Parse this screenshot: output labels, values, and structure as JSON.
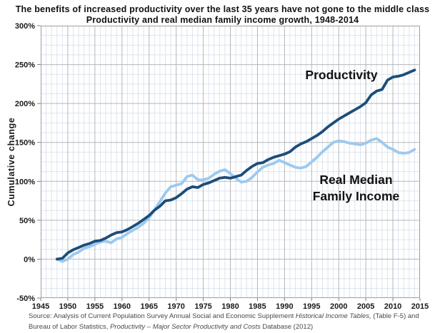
{
  "title_line1": "The benefits of increased productivity over the last 35 years have not gone to the middle class",
  "title_line2": "Productivity and real median family income growth, 1948-2014",
  "y_axis_title": "Cumulative change",
  "source": {
    "line1_pre": "Source:  Analysis of Current Population Survey Annual Social and Economic Supplement ",
    "line1_italic": "Historical Income Tables,",
    "line1_post": " (Table F-5) and",
    "line2_pre": "Bureau of Labor Statistics, ",
    "line2_italic": "Productivity – Major Sector Productivity and Costs",
    "line2_post": " Database (2012)"
  },
  "chart_data": {
    "type": "line",
    "title": "Productivity and real median family income growth, 1948-2014",
    "xlabel": "",
    "ylabel": "Cumulative change",
    "xlim": [
      1945,
      2015
    ],
    "ylim": [
      -50,
      300
    ],
    "grid": {
      "minor_x_step_years": 1,
      "minor_y_step_pct": 12.5,
      "major_x_step_years": 5,
      "major_y_step_pct": 50,
      "minor_color": "#dde4ee",
      "major_color": "#b3b6ba",
      "border_color": "#9aa0a6"
    },
    "x_ticks": [
      1945,
      1950,
      1955,
      1960,
      1965,
      1970,
      1975,
      1980,
      1985,
      1990,
      1995,
      2000,
      2005,
      2010,
      2015
    ],
    "y_ticks": [
      {
        "value": 300,
        "label": "300%"
      },
      {
        "value": 250,
        "label": "250%"
      },
      {
        "value": 200,
        "label": "200%"
      },
      {
        "value": 150,
        "label": "150%"
      },
      {
        "value": 100,
        "label": "100%"
      },
      {
        "value": 50,
        "label": "50%"
      },
      {
        "value": 0,
        "label": "0%"
      },
      {
        "value": -50,
        "label": "-50%"
      }
    ],
    "years": [
      1948,
      1949,
      1950,
      1951,
      1952,
      1953,
      1954,
      1955,
      1956,
      1957,
      1958,
      1959,
      1960,
      1961,
      1962,
      1963,
      1964,
      1965,
      1966,
      1967,
      1968,
      1969,
      1970,
      1971,
      1972,
      1973,
      1974,
      1975,
      1976,
      1977,
      1978,
      1979,
      1980,
      1981,
      1982,
      1983,
      1984,
      1985,
      1986,
      1987,
      1988,
      1989,
      1990,
      1991,
      1992,
      1993,
      1994,
      1995,
      1996,
      1997,
      1998,
      1999,
      2000,
      2001,
      2002,
      2003,
      2004,
      2005,
      2006,
      2007,
      2008,
      2009,
      2010,
      2011,
      2012,
      2013,
      2014
    ],
    "series": [
      {
        "name": "Real Median Family Income",
        "color": "#9dc9ee",
        "stroke_width": 3.8,
        "values": [
          0,
          -3,
          0,
          6,
          9,
          14,
          16,
          19,
          22,
          23,
          21,
          26,
          28,
          33,
          37,
          41,
          46,
          53,
          63,
          74,
          85,
          93,
          95,
          97,
          106,
          108,
          102,
          102,
          104,
          109,
          113,
          115,
          110,
          104,
          99,
          100,
          105,
          112,
          118,
          121,
          123,
          127,
          124,
          121,
          118,
          117,
          119,
          125,
          131,
          138,
          144,
          150,
          152,
          151,
          149,
          148,
          147,
          149,
          153,
          155,
          150,
          144,
          141,
          137,
          136,
          137,
          141
        ]
      },
      {
        "name": "Productivity",
        "color": "#1c4d79",
        "stroke_width": 3.8,
        "values": [
          0,
          1,
          8,
          12,
          15,
          18,
          20,
          23,
          24,
          27,
          31,
          34,
          35,
          38,
          42,
          46,
          51,
          56,
          63,
          68,
          75,
          76,
          79,
          84,
          90,
          93,
          92,
          96,
          98,
          101,
          104,
          105,
          104,
          106,
          108,
          114,
          119,
          123,
          124,
          128,
          131,
          133,
          135,
          138,
          144,
          148,
          151,
          155,
          159,
          164,
          170,
          175,
          180,
          184,
          188,
          192,
          196,
          201,
          211,
          216,
          218,
          230,
          234,
          235,
          237,
          240,
          243
        ]
      }
    ],
    "annotations": [
      {
        "text": "Productivity",
        "x_year": 2000.5,
        "y_value": 237,
        "font_size": 17.5
      },
      {
        "text": "Real Median",
        "x_year": 2003.2,
        "y_value": 102,
        "font_size": 17.5
      },
      {
        "text": "Family Income",
        "x_year": 2003.2,
        "y_value": 81,
        "font_size": 17.5
      }
    ],
    "tick_label_color": "#1a1a1a",
    "annotation_color": "#111111",
    "legend_position": "none"
  }
}
